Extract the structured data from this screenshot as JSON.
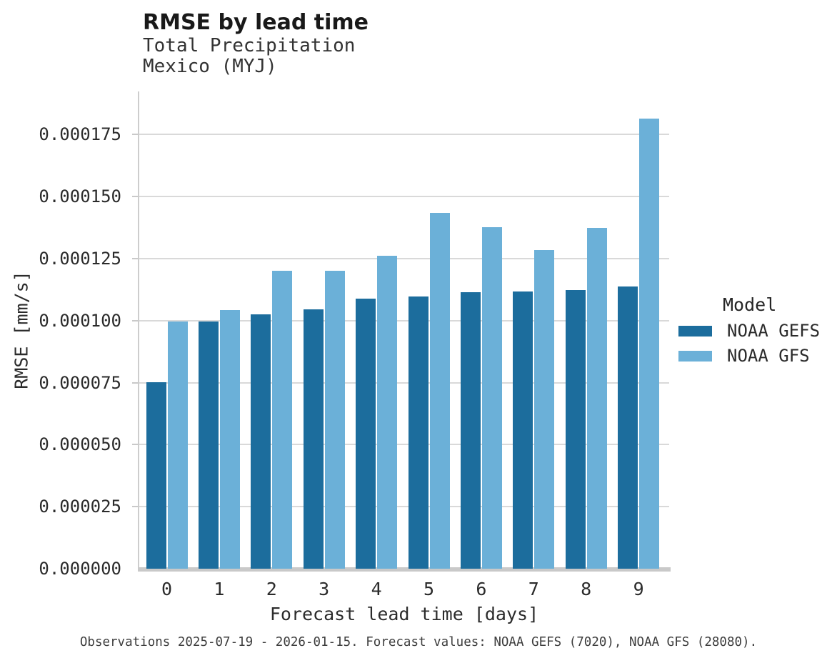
{
  "header": {
    "title": "RMSE by lead time",
    "subtitle_line1": "Total Precipitation",
    "subtitle_line2": "Mexico (MYJ)"
  },
  "legend": {
    "title": "Model",
    "items": [
      {
        "label": "NOAA GEFS",
        "color": "#1c6d9d"
      },
      {
        "label": "NOAA GFS",
        "color": "#6bb0d8"
      }
    ]
  },
  "footer": {
    "text": "Observations 2025-07-19 - 2026-01-15. Forecast values: NOAA GEFS (7020), NOAA GFS (28080)."
  },
  "colors": {
    "gridline": "#d9d9d9",
    "axis_line": "#c9c9c9",
    "dark_blue": "#1c6d9d",
    "light_blue": "#6bb0d8"
  },
  "chart_data": {
    "type": "bar",
    "title": "RMSE by lead time",
    "subtitle": [
      "Total Precipitation",
      "Mexico (MYJ)"
    ],
    "xlabel": "Forecast lead time [days]",
    "ylabel": "RMSE [mm/s]",
    "categories": [
      "0",
      "1",
      "2",
      "3",
      "4",
      "5",
      "6",
      "7",
      "8",
      "9"
    ],
    "series": [
      {
        "name": "NOAA GEFS",
        "color": "#1c6d9d",
        "values": [
          7.53e-05,
          9.98e-05,
          0.0001026,
          0.0001045,
          0.0001089,
          0.0001098,
          0.0001114,
          0.0001118,
          0.0001122,
          0.0001138
        ]
      },
      {
        "name": "NOAA GFS",
        "color": "#6bb0d8",
        "values": [
          9.98e-05,
          0.0001043,
          0.0001201,
          0.0001201,
          0.0001262,
          0.0001434,
          0.0001378,
          0.0001284,
          0.0001373,
          0.0001816
        ]
      }
    ],
    "ylim": [
      0,
      0.0001924
    ],
    "yticks": [
      0,
      2.5e-05,
      5e-05,
      7.5e-05,
      0.0001,
      0.000125,
      0.00015,
      0.000175
    ],
    "ytick_format_decimals": 6,
    "grid": "horizontal",
    "legend_position": "right"
  }
}
